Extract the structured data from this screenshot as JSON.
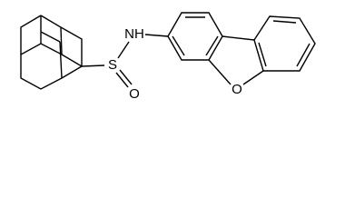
{
  "atoms": {
    "labels": [
      "NH",
      "S",
      "O",
      "O"
    ]
  }
}
